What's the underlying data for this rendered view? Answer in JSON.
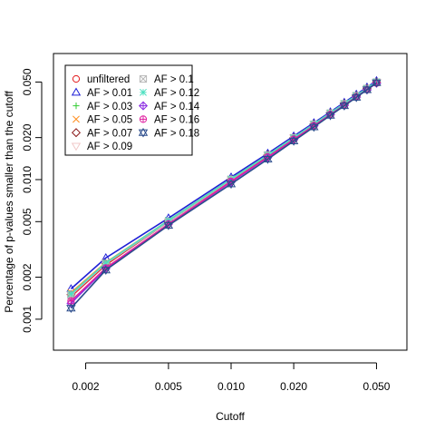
{
  "chart_data": {
    "type": "line",
    "title": "",
    "xlabel": "Cutoff",
    "ylabel": "Percentage of p-values smaller than the cutoff",
    "xscale": "log",
    "yscale": "log",
    "xlim": [
      0.0014,
      0.07
    ],
    "ylim": [
      0.0006,
      0.08
    ],
    "xticks": [
      0.002,
      0.005,
      0.01,
      0.02,
      0.05
    ],
    "xtick_labels": [
      "0.002",
      "0.005",
      "0.010",
      "0.020",
      "0.050"
    ],
    "yticks": [
      0.001,
      0.002,
      0.005,
      0.01,
      0.02,
      0.05
    ],
    "ytick_labels": [
      "0.001",
      "0.002",
      "0.005",
      "0.010",
      "0.020",
      "0.050"
    ],
    "grid": false,
    "legend_position": "top-left",
    "x": [
      0.0017,
      0.0025,
      0.005,
      0.01,
      0.015,
      0.02,
      0.025,
      0.03,
      0.035,
      0.04,
      0.045,
      0.05
    ],
    "series": [
      {
        "name": "unfiltered",
        "color": "#e31a1c",
        "marker": "circle",
        "values": [
          0.00145,
          0.00245,
          0.005,
          0.0099,
          0.0148,
          0.0198,
          0.0247,
          0.0297,
          0.0346,
          0.0396,
          0.0446,
          0.0496
        ]
      },
      {
        "name": "AF > 0.01",
        "color": "#1f1fd6",
        "marker": "triangle",
        "values": [
          0.00165,
          0.00275,
          0.0053,
          0.0104,
          0.0154,
          0.0205,
          0.0255,
          0.0305,
          0.0357,
          0.0408,
          0.0459,
          0.051
        ]
      },
      {
        "name": "AF > 0.03",
        "color": "#33cc33",
        "marker": "plus",
        "values": [
          0.0015,
          0.0025,
          0.005,
          0.01,
          0.0149,
          0.0199,
          0.0248,
          0.0298,
          0.0348,
          0.0398,
          0.0448,
          0.0498
        ]
      },
      {
        "name": "AF > 0.05",
        "color": "#ff8c1a",
        "marker": "x",
        "values": [
          0.00155,
          0.00255,
          0.0051,
          0.0101,
          0.015,
          0.02,
          0.025,
          0.03,
          0.035,
          0.04,
          0.045,
          0.05
        ]
      },
      {
        "name": "AF > 0.07",
        "color": "#8b1a1a",
        "marker": "diamond",
        "values": [
          0.0015,
          0.0025,
          0.005,
          0.01,
          0.015,
          0.0199,
          0.0249,
          0.0299,
          0.0349,
          0.0399,
          0.0449,
          0.0499
        ]
      },
      {
        "name": "AF > 0.09",
        "color": "#f0c8c8",
        "marker": "triangle-down",
        "values": [
          0.0015,
          0.00252,
          0.005,
          0.01,
          0.015,
          0.02,
          0.025,
          0.03,
          0.035,
          0.04,
          0.045,
          0.05
        ]
      },
      {
        "name": "AF > 0.1",
        "color": "#b8b8b8",
        "marker": "square-x",
        "values": [
          0.00148,
          0.0025,
          0.005,
          0.01,
          0.015,
          0.0199,
          0.0249,
          0.0299,
          0.0349,
          0.0399,
          0.0449,
          0.0499
        ]
      },
      {
        "name": "AF > 0.12",
        "color": "#4ce0c0",
        "marker": "asterisk",
        "values": [
          0.00152,
          0.00253,
          0.0051,
          0.0101,
          0.015,
          0.02,
          0.025,
          0.03,
          0.035,
          0.04,
          0.045,
          0.0501
        ]
      },
      {
        "name": "AF > 0.14",
        "color": "#8a2be2",
        "marker": "diamond-plus",
        "values": [
          0.0013,
          0.0023,
          0.0048,
          0.0096,
          0.0144,
          0.0193,
          0.0242,
          0.0291,
          0.034,
          0.039,
          0.044,
          0.049
        ]
      },
      {
        "name": "AF > 0.16",
        "color": "#e020a0",
        "marker": "circle-plus",
        "values": [
          0.00135,
          0.00233,
          0.0048,
          0.0097,
          0.0145,
          0.0194,
          0.0243,
          0.0292,
          0.0341,
          0.0391,
          0.0441,
          0.0491
        ]
      },
      {
        "name": "AF > 0.18",
        "color": "#2b4c8c",
        "marker": "star-of-david",
        "values": [
          0.0012,
          0.00225,
          0.0047,
          0.0093,
          0.014,
          0.0189,
          0.0238,
          0.0288,
          0.0338,
          0.0388,
          0.044,
          0.0494
        ]
      }
    ]
  }
}
